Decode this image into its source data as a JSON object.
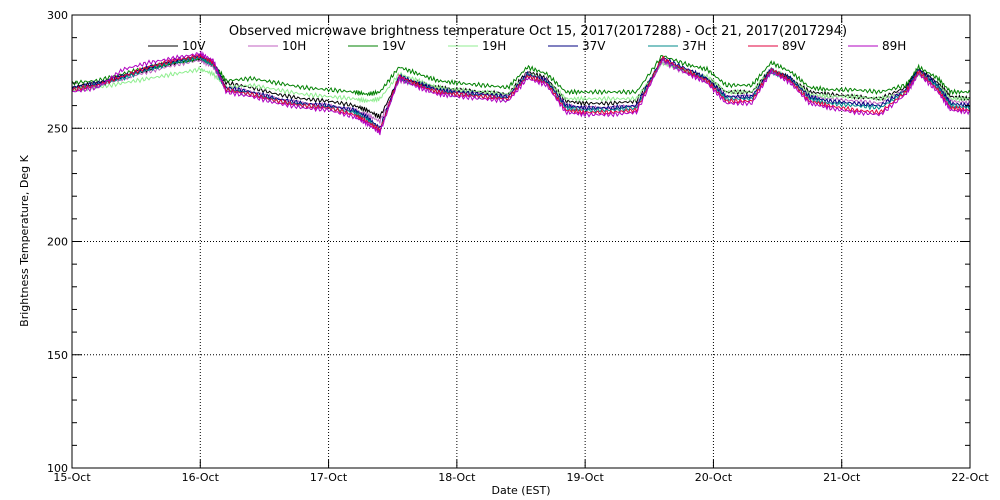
{
  "chart_data": {
    "type": "line",
    "title": "Observed microwave brightness temperature Oct 15, 2017(2017288) - Oct 21, 2017(2017294)",
    "xlabel": "Date (EST)",
    "ylabel": "Brightness Temperature, Deg K",
    "x_ticks": [
      "15-Oct",
      "16-Oct",
      "17-Oct",
      "18-Oct",
      "19-Oct",
      "20-Oct",
      "21-Oct",
      "22-Oct"
    ],
    "y_ticks": [
      100,
      150,
      200,
      250,
      300
    ],
    "xlim": [
      0,
      7
    ],
    "ylim": [
      100,
      300
    ],
    "grid": true,
    "legend_placement": "top",
    "x_units": "days since 15-Oct 00:00",
    "series": [
      {
        "name": "10V",
        "color": "#000000",
        "x": [
          0,
          0.2,
          0.4,
          0.6,
          0.8,
          1.0,
          1.1,
          1.2,
          1.4,
          1.6,
          1.8,
          2.0,
          2.2,
          2.3,
          2.4,
          2.55,
          2.7,
          2.85,
          3.0,
          3.2,
          3.4,
          3.55,
          3.7,
          3.85,
          4.0,
          4.2,
          4.4,
          4.6,
          4.8,
          4.95,
          5.1,
          5.3,
          5.45,
          5.6,
          5.75,
          5.9,
          6.1,
          6.3,
          6.5,
          6.6,
          6.75,
          6.85,
          7.0
        ],
        "values": [
          268,
          270,
          273,
          276,
          279,
          281,
          278,
          270,
          268,
          265,
          263,
          262,
          260,
          258,
          255,
          272,
          270,
          268,
          267,
          266,
          265,
          275,
          272,
          262,
          261,
          261,
          262,
          280,
          275,
          272,
          266,
          266,
          276,
          272,
          266,
          265,
          264,
          263,
          268,
          276,
          270,
          264,
          263
        ]
      },
      {
        "name": "10H",
        "color": "#c060c0",
        "x": [
          0,
          0.2,
          0.4,
          0.6,
          0.8,
          1.0,
          1.1,
          1.2,
          1.4,
          1.6,
          1.8,
          2.0,
          2.2,
          2.3,
          2.4,
          2.55,
          2.7,
          2.85,
          3.0,
          3.2,
          3.4,
          3.55,
          3.7,
          3.85,
          4.0,
          4.2,
          4.4,
          4.6,
          4.8,
          4.95,
          5.1,
          5.3,
          5.45,
          5.6,
          5.75,
          5.9,
          6.1,
          6.3,
          6.5,
          6.6,
          6.75,
          6.85,
          7.0
        ],
        "values": [
          267,
          269,
          272,
          275,
          278,
          280,
          277,
          268,
          266,
          263,
          261,
          260,
          258,
          256,
          253,
          271,
          269,
          267,
          266,
          265,
          264,
          274,
          271,
          260,
          259,
          259,
          260,
          279,
          274,
          271,
          264,
          264,
          275,
          271,
          264,
          263,
          262,
          261,
          267,
          275,
          268,
          262,
          261
        ]
      },
      {
        "name": "19V",
        "color": "#008000",
        "x": [
          0,
          0.2,
          0.4,
          0.6,
          0.8,
          1.0,
          1.1,
          1.2,
          1.4,
          1.6,
          1.8,
          2.0,
          2.2,
          2.3,
          2.4,
          2.55,
          2.7,
          2.85,
          3.0,
          3.2,
          3.4,
          3.55,
          3.7,
          3.85,
          4.0,
          4.2,
          4.4,
          4.6,
          4.8,
          4.95,
          5.1,
          5.3,
          5.45,
          5.6,
          5.75,
          5.9,
          6.1,
          6.3,
          6.5,
          6.6,
          6.75,
          6.85,
          7.0
        ],
        "values": [
          270,
          271,
          274,
          277,
          279,
          281,
          279,
          271,
          272,
          270,
          268,
          267,
          266,
          265,
          266,
          277,
          274,
          271,
          270,
          269,
          268,
          277,
          274,
          266,
          266,
          266,
          266,
          282,
          278,
          276,
          269,
          269,
          279,
          275,
          268,
          267,
          267,
          266,
          269,
          277,
          272,
          266,
          266
        ]
      },
      {
        "name": "19H",
        "color": "#90ee90",
        "x": [
          0,
          0.2,
          0.4,
          0.6,
          0.8,
          1.0,
          1.1,
          1.2,
          1.4,
          1.6,
          1.8,
          2.0,
          2.2,
          2.3,
          2.4,
          2.55,
          2.7,
          2.85,
          3.0,
          3.2,
          3.4,
          3.55,
          3.7,
          3.85,
          4.0,
          4.2,
          4.4,
          4.6,
          4.8,
          4.95,
          5.1,
          5.3,
          5.45,
          5.6,
          5.75,
          5.9,
          6.1,
          6.3,
          6.5,
          6.6,
          6.75,
          6.85,
          7.0
        ],
        "values": [
          267,
          268,
          270,
          272,
          274,
          276,
          274,
          268,
          269,
          267,
          265,
          264,
          263,
          262,
          263,
          274,
          271,
          268,
          267,
          266,
          265,
          274,
          271,
          263,
          263,
          263,
          263,
          279,
          275,
          273,
          266,
          266,
          276,
          272,
          265,
          264,
          264,
          263,
          266,
          274,
          269,
          263,
          263
        ]
      },
      {
        "name": "37V",
        "color": "#000080",
        "x": [
          0,
          0.2,
          0.4,
          0.6,
          0.8,
          1.0,
          1.1,
          1.2,
          1.4,
          1.6,
          1.8,
          2.0,
          2.2,
          2.3,
          2.4,
          2.55,
          2.7,
          2.85,
          3.0,
          3.2,
          3.4,
          3.55,
          3.7,
          3.85,
          4.0,
          4.2,
          4.4,
          4.6,
          4.8,
          4.95,
          5.1,
          5.3,
          5.45,
          5.6,
          5.75,
          5.9,
          6.1,
          6.3,
          6.5,
          6.6,
          6.75,
          6.85,
          7.0
        ],
        "values": [
          268,
          270,
          273,
          277,
          280,
          282,
          279,
          268,
          266,
          263,
          261,
          260,
          258,
          255,
          250,
          273,
          270,
          267,
          266,
          265,
          264,
          274,
          271,
          260,
          259,
          259,
          260,
          281,
          276,
          272,
          264,
          264,
          276,
          272,
          264,
          262,
          261,
          260,
          267,
          276,
          269,
          261,
          260
        ]
      },
      {
        "name": "37H",
        "color": "#008b8b",
        "x": [
          0,
          0.2,
          0.4,
          0.6,
          0.8,
          1.0,
          1.1,
          1.2,
          1.4,
          1.6,
          1.8,
          2.0,
          2.2,
          2.3,
          2.4,
          2.55,
          2.7,
          2.85,
          3.0,
          3.2,
          3.4,
          3.55,
          3.7,
          3.85,
          4.0,
          4.2,
          4.4,
          4.6,
          4.8,
          4.95,
          5.1,
          5.3,
          5.45,
          5.6,
          5.75,
          5.9,
          6.1,
          6.3,
          6.5,
          6.6,
          6.75,
          6.85,
          7.0
        ],
        "values": [
          267,
          269,
          272,
          276,
          279,
          281,
          278,
          267,
          265,
          262,
          260,
          259,
          257,
          254,
          249,
          272,
          269,
          266,
          265,
          264,
          263,
          273,
          270,
          259,
          258,
          258,
          259,
          280,
          275,
          271,
          263,
          263,
          275,
          271,
          263,
          261,
          260,
          259,
          266,
          275,
          268,
          260,
          259
        ]
      },
      {
        "name": "89V",
        "color": "#e0003c",
        "x": [
          0,
          0.2,
          0.4,
          0.6,
          0.8,
          1.0,
          1.1,
          1.2,
          1.4,
          1.6,
          1.8,
          2.0,
          2.2,
          2.3,
          2.4,
          2.55,
          2.7,
          2.85,
          3.0,
          3.2,
          3.4,
          3.55,
          3.7,
          3.85,
          4.0,
          4.2,
          4.4,
          4.6,
          4.8,
          4.95,
          5.1,
          5.3,
          5.45,
          5.6,
          5.75,
          5.9,
          6.1,
          6.3,
          6.5,
          6.6,
          6.75,
          6.85,
          7.0
        ],
        "values": [
          267,
          269,
          273,
          277,
          280,
          282,
          279,
          267,
          265,
          262,
          260,
          259,
          256,
          253,
          249,
          273,
          269,
          266,
          265,
          264,
          263,
          273,
          270,
          258,
          257,
          257,
          258,
          281,
          275,
          271,
          262,
          262,
          276,
          271,
          262,
          260,
          258,
          257,
          266,
          275,
          267,
          259,
          258
        ]
      },
      {
        "name": "89H",
        "color": "#b000c0",
        "x": [
          0,
          0.2,
          0.4,
          0.6,
          0.8,
          1.0,
          1.1,
          1.2,
          1.4,
          1.6,
          1.8,
          2.0,
          2.2,
          2.3,
          2.4,
          2.55,
          2.7,
          2.85,
          3.0,
          3.2,
          3.4,
          3.55,
          3.7,
          3.85,
          4.0,
          4.2,
          4.4,
          4.6,
          4.8,
          4.95,
          5.1,
          5.3,
          5.45,
          5.6,
          5.75,
          5.9,
          6.1,
          6.3,
          6.5,
          6.6,
          6.75,
          6.85,
          7.0
        ],
        "values": [
          266,
          268,
          276,
          279,
          281,
          283,
          280,
          266,
          264,
          261,
          259,
          258,
          255,
          252,
          248,
          272,
          268,
          265,
          264,
          263,
          262,
          272,
          269,
          257,
          256,
          256,
          257,
          280,
          274,
          270,
          261,
          261,
          275,
          270,
          261,
          259,
          257,
          256,
          265,
          274,
          266,
          258,
          257
        ]
      }
    ]
  }
}
